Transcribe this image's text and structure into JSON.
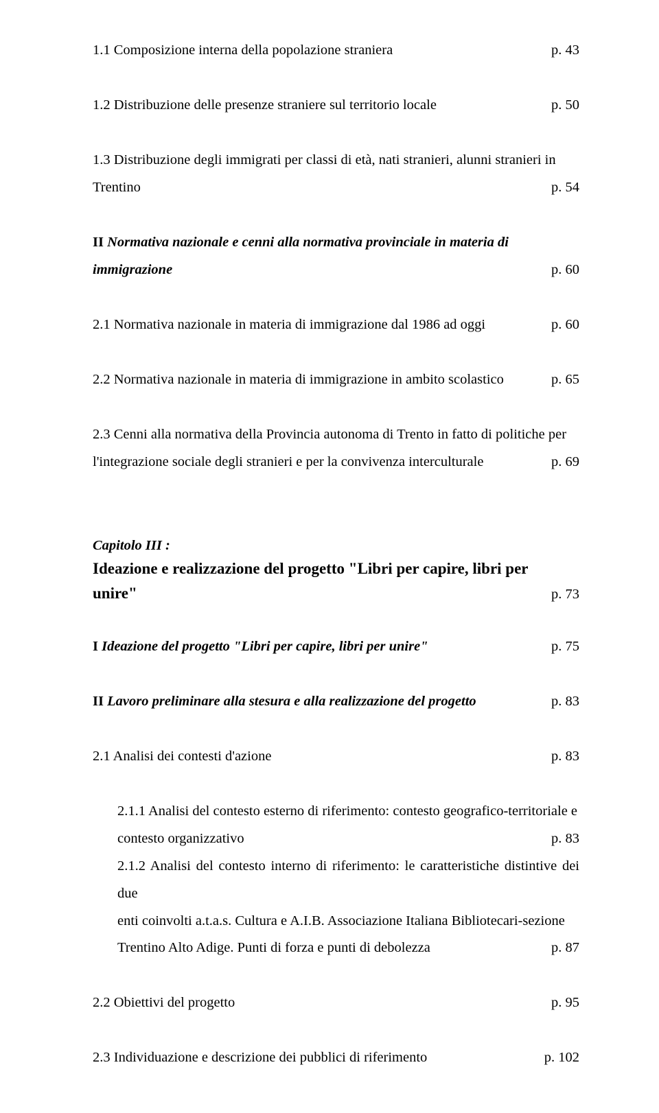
{
  "lines": {
    "l1": {
      "text": "1.1 Composizione interna della popolazione straniera",
      "page": "p. 43"
    },
    "l2": {
      "text": "1.2 Distribuzione delle presenze straniere sul territorio locale",
      "page": "p. 50"
    },
    "l3a": "1.3 Distribuzione degli immigrati per classi di età, nati stranieri, alunni stranieri in",
    "l3b": {
      "text": "Trentino",
      "page": "p. 54"
    },
    "l4a": "II",
    "l4b": "Normativa nazionale e cenni alla normativa provinciale in materia di",
    "l4c": {
      "text": "immigrazione",
      "page": "p. 60"
    },
    "l5": {
      "text": "2.1 Normativa nazionale in materia di immigrazione dal 1986 ad oggi",
      "page": "p. 60"
    },
    "l6": {
      "text": "2.2 Normativa nazionale in materia di immigrazione in ambito scolastico",
      "page": "p. 65"
    },
    "l7a": "2.3 Cenni alla normativa della Provincia autonoma di Trento in fatto di  politiche per",
    "l7b": {
      "text": "l'integrazione sociale degli stranieri e per la convivenza interculturale",
      "page": "p. 69"
    },
    "cap3_label": "Capitolo III :",
    "cap3_t1": "Ideazione e realizzazione del progetto \"Libri per capire, libri per",
    "cap3_t2": {
      "text": "unire\"",
      "page": "p. 73"
    },
    "l8": {
      "text": "I Ideazione del progetto \"Libri per capire, libri per unire\"",
      "page": "p. 75"
    },
    "l9": {
      "text": "II Lavoro preliminare alla stesura e alla realizzazione del progetto",
      "page": "p. 83"
    },
    "l10": {
      "text": "2.1 Analisi dei contesti d'azione",
      "page": "p. 83"
    },
    "l11a": "2.1.1 Analisi del contesto esterno di riferimento: contesto geografico-territoriale e",
    "l11b": {
      "text": "contesto organizzativo",
      "page": "p. 83"
    },
    "l12a": "2.1.2 Analisi del contesto interno di riferimento: le caratteristiche distintive dei due",
    "l12b": "enti coinvolti a.t.a.s. Cultura e A.I.B. Associazione Italiana Bibliotecari-sezione",
    "l12c": {
      "text": "Trentino Alto Adige. Punti di forza e punti di debolezza",
      "page": "p. 87"
    },
    "l13": {
      "text": "2.2 Obiettivi del progetto",
      "page": "p. 95"
    },
    "l14": {
      "text": "2.3 Individuazione e descrizione dei pubblici di riferimento",
      "page": "p. 102"
    }
  }
}
